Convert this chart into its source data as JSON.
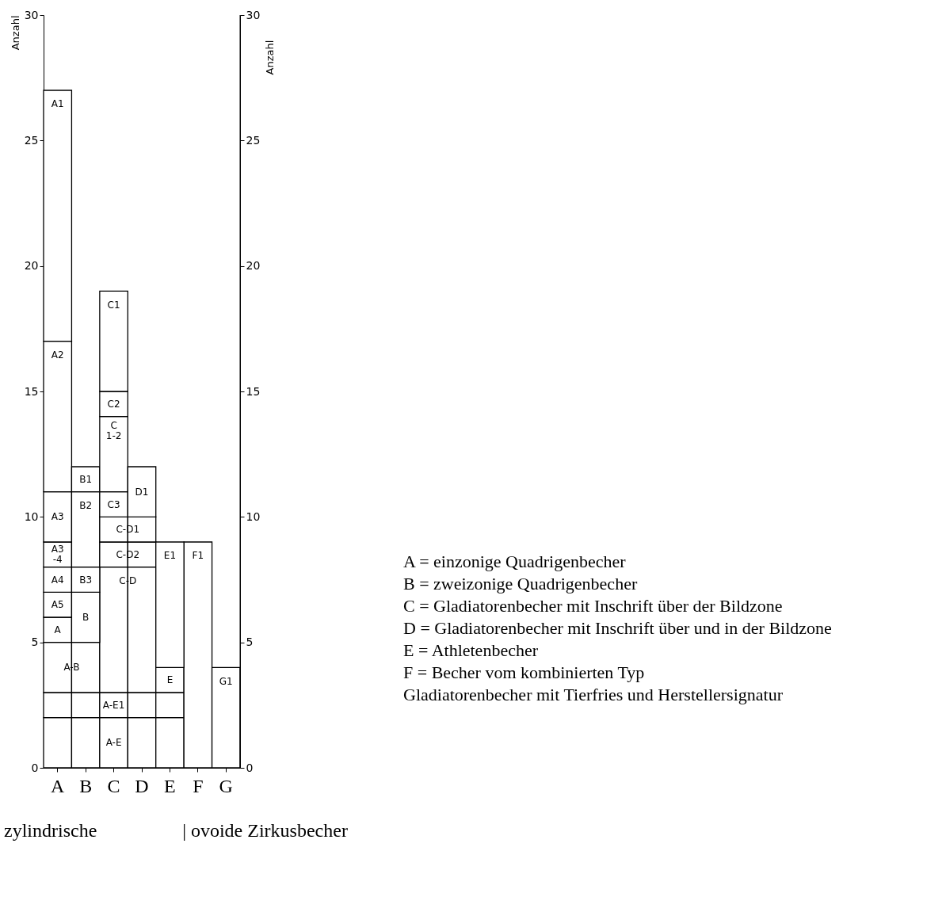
{
  "chart_data": {
    "type": "bar",
    "stacked": true,
    "categories": [
      "A",
      "B",
      "C",
      "D",
      "E",
      "F",
      "G"
    ],
    "ylim": [
      0,
      30
    ],
    "yticks": [
      0,
      5,
      10,
      15,
      20,
      25,
      30
    ],
    "ylabel": "Anzahl",
    "y2lim": [
      0,
      30
    ],
    "y2ticks": [
      0,
      5,
      10,
      15,
      20,
      25,
      30
    ],
    "y2label": "Anzahl",
    "legend": false,
    "grid": false,
    "data_labels": false,
    "series": [
      {
        "name": "A-E",
        "color": "#ffffff",
        "values": [
          2,
          2,
          2,
          2,
          2,
          null,
          null
        ]
      },
      {
        "name": "A-E1",
        "color": "#ffffff",
        "values": [
          1,
          1,
          1,
          1,
          1,
          null,
          null
        ]
      },
      {
        "name": "A-B",
        "color": "#ffffff",
        "values": [
          2,
          2,
          null,
          null,
          null,
          null,
          null
        ]
      },
      {
        "name": "C-D",
        "color": "#ffffff",
        "values": [
          null,
          null,
          5,
          5,
          null,
          null,
          null
        ]
      },
      {
        "name": "E",
        "color": "#ffffff",
        "values": [
          null,
          null,
          null,
          null,
          1,
          null,
          null
        ]
      },
      {
        "name": "F1",
        "color": "#ffffff",
        "values": [
          null,
          null,
          null,
          null,
          null,
          9,
          null
        ]
      },
      {
        "name": "G1",
        "color": "#ffffff",
        "values": [
          null,
          null,
          null,
          null,
          null,
          null,
          4
        ]
      },
      {
        "name": "A",
        "color": "#ffffff",
        "values": [
          1,
          null,
          null,
          null,
          null,
          null,
          null
        ]
      },
      {
        "name": "A5",
        "color": "#ffffff",
        "values": [
          1,
          null,
          null,
          null,
          null,
          null,
          null
        ]
      },
      {
        "name": "A4",
        "color": "#ffffff",
        "values": [
          1,
          null,
          null,
          null,
          null,
          null,
          null
        ]
      },
      {
        "name": "A3\n-4",
        "color": "#ffffff",
        "values": [
          1,
          null,
          null,
          null,
          null,
          null,
          null
        ]
      },
      {
        "name": "A3",
        "color": "#ffffff",
        "values": [
          2,
          null,
          null,
          null,
          null,
          null,
          null
        ]
      },
      {
        "name": "A2",
        "color": "#ffffff",
        "values": [
          6,
          null,
          null,
          null,
          null,
          null,
          null
        ]
      },
      {
        "name": "A1",
        "color": "#ffffff",
        "values": [
          10,
          null,
          null,
          null,
          null,
          null,
          null
        ]
      },
      {
        "name": "B",
        "color": "#ffffff",
        "values": [
          null,
          2,
          null,
          null,
          null,
          null,
          null
        ]
      },
      {
        "name": "B3",
        "color": "#ffffff",
        "values": [
          null,
          1,
          null,
          null,
          null,
          null,
          null
        ]
      },
      {
        "name": "B2",
        "color": "#ffffff",
        "values": [
          null,
          3,
          null,
          null,
          null,
          null,
          null
        ]
      },
      {
        "name": "B1",
        "color": "#ffffff",
        "values": [
          null,
          1,
          null,
          null,
          null,
          null,
          null
        ]
      },
      {
        "name": "C-D2",
        "color": "#ffffff",
        "values": [
          null,
          null,
          1,
          1,
          null,
          null,
          null
        ]
      },
      {
        "name": "C-D1",
        "color": "#ffffff",
        "values": [
          null,
          null,
          1,
          1,
          null,
          null,
          null
        ]
      },
      {
        "name": "C3",
        "color": "#ffffff",
        "values": [
          null,
          null,
          1,
          null,
          null,
          null,
          null
        ]
      },
      {
        "name": "C\n1-2",
        "color": "#ffffff",
        "values": [
          null,
          null,
          3,
          null,
          null,
          null,
          null
        ]
      },
      {
        "name": "C2",
        "color": "#ffffff",
        "values": [
          null,
          null,
          1,
          null,
          null,
          null,
          null
        ]
      },
      {
        "name": "C1",
        "color": "#ffffff",
        "values": [
          null,
          null,
          4,
          null,
          null,
          null,
          null
        ]
      },
      {
        "name": "D1",
        "color": "#ffffff",
        "values": [
          null,
          null,
          null,
          2,
          null,
          null,
          null
        ]
      },
      {
        "name": "E1",
        "color": "#ffffff",
        "values": [
          null,
          null,
          null,
          null,
          5,
          null,
          null
        ]
      }
    ],
    "annotations": [
      "A = einzonige Quadrigenbecher",
      "B = zweizonige Quadrigenbecher",
      "C = Gladiatorenbecher mit Inschrift über der Bildzone",
      "D = Gladiatorenbecher mit Inschrift über und in der Bildzone",
      "E = Athletenbecher",
      "F = Becher vom kombinierten Typ\n      Gladiatorenbecher mit Tierfries und Herstellersignatur",
      "zylindrische",
      "| ovoide Zirkusbecher"
    ]
  }
}
